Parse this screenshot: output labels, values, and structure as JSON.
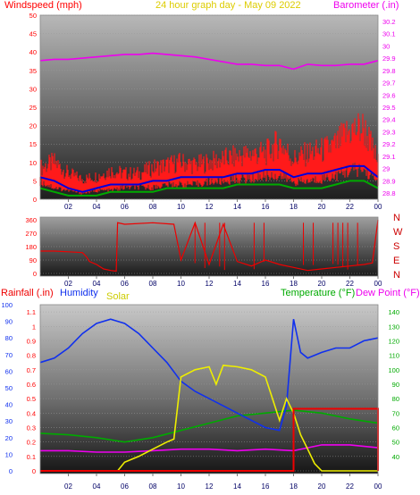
{
  "title": "24 hour graph day - May 09 2022",
  "colors": {
    "wind": "#ff1a1a",
    "wind_mid": "#0000dd",
    "wind_low": "#00aa00",
    "barometer": "#ee00ee",
    "direction": "#ee0000",
    "rainfall": "#ee0000",
    "humidity": "#1030ee",
    "solar": "#eeee00",
    "temperature": "#00aa00",
    "dewpoint": "#ee00ee",
    "title": "#ddcc00",
    "axis_left": "#ff0000",
    "axis_right_top": "#ee00ee",
    "axis_right_bottom": "#00aa00"
  },
  "x_ticks": [
    "02",
    "04",
    "06",
    "08",
    "10",
    "12",
    "14",
    "16",
    "18",
    "20",
    "22",
    "00"
  ],
  "chart_data": [
    {
      "type": "line",
      "panel": "wind_barometer",
      "labels": {
        "left": "Windspeed (mph)",
        "right": "Barometer (.in)"
      },
      "y_left": {
        "ticks": [
          "0",
          "5",
          "10",
          "15",
          "20",
          "25",
          "30",
          "35",
          "40",
          "45",
          "50"
        ],
        "range": [
          0,
          50
        ]
      },
      "y_right": {
        "ticks": [
          "28.8",
          "28.9",
          "29",
          "29.1",
          "29.2",
          "29.3",
          "29.4",
          "29.5",
          "29.6",
          "29.7",
          "29.8",
          "29.9",
          "30",
          "30.1",
          "30.2"
        ],
        "range": [
          28.75,
          30.25
        ]
      },
      "series": [
        {
          "name": "Windspeed (mph)",
          "x": [
            0,
            1,
            2,
            3,
            4,
            5,
            6,
            7,
            8,
            9,
            10,
            11,
            12,
            13,
            14,
            15,
            16,
            17,
            18,
            19,
            20,
            21,
            22,
            23,
            24
          ],
          "gust_max": [
            11,
            13,
            9,
            7,
            8,
            10,
            9,
            9,
            11,
            12,
            13,
            12,
            13,
            14,
            15,
            16,
            16,
            20,
            14,
            16,
            17,
            19,
            24,
            25,
            13
          ],
          "gust_min": [
            6,
            4,
            3,
            2,
            3,
            3,
            4,
            4,
            4,
            5,
            5,
            5,
            6,
            6,
            7,
            7,
            8,
            8,
            6,
            6,
            7,
            8,
            10,
            10,
            6
          ],
          "avg": [
            6,
            5,
            3,
            2,
            3,
            4,
            4,
            4,
            5,
            5,
            6,
            6,
            6,
            6,
            7,
            7,
            8,
            8,
            6,
            7,
            7,
            8,
            9,
            9,
            6
          ],
          "low": [
            3,
            2,
            1,
            1,
            1,
            2,
            2,
            2,
            2,
            3,
            3,
            3,
            3,
            3,
            4,
            4,
            4,
            4,
            3,
            3,
            3,
            4,
            5,
            5,
            3
          ]
        },
        {
          "name": "Barometer (.in)",
          "x": [
            0,
            1,
            2,
            3,
            4,
            5,
            6,
            7,
            8,
            9,
            10,
            11,
            12,
            13,
            14,
            15,
            16,
            17,
            18,
            19,
            20,
            21,
            22,
            23,
            24
          ],
          "values": [
            29.88,
            29.89,
            29.89,
            29.9,
            29.91,
            29.92,
            29.93,
            29.93,
            29.94,
            29.93,
            29.92,
            29.91,
            29.89,
            29.87,
            29.85,
            29.85,
            29.84,
            29.84,
            29.81,
            29.85,
            29.84,
            29.84,
            29.85,
            29.85,
            29.88
          ]
        }
      ]
    },
    {
      "type": "line",
      "panel": "wind_direction",
      "y_left": {
        "ticks": [
          "0",
          "90",
          "180",
          "270",
          "360"
        ],
        "range": [
          0,
          360
        ]
      },
      "direction_labels": [
        "N",
        "W",
        "S",
        "E",
        "N"
      ],
      "series": [
        {
          "name": "Wind direction",
          "x": [
            0,
            1,
            2,
            3,
            3.3,
            3.5,
            4,
            4.5,
            5,
            5.4,
            5.5,
            6,
            8,
            9.5,
            10,
            11,
            12,
            13,
            14,
            15,
            16,
            17,
            18,
            19,
            20,
            21,
            22,
            23,
            23.6,
            24
          ],
          "values": [
            150,
            150,
            145,
            140,
            110,
            80,
            60,
            30,
            20,
            15,
            340,
            330,
            340,
            330,
            90,
            340,
            60,
            330,
            80,
            50,
            90,
            60,
            40,
            20,
            30,
            40,
            50,
            60,
            70,
            360
          ]
        }
      ]
    },
    {
      "type": "line",
      "panel": "rain_humidity_solar_temp",
      "labels": {
        "rainfall": "Rainfall (.in)",
        "humidity": "Humidity",
        "solar": "Solar",
        "temperature": "Temperature (°F)",
        "dewpoint": "Dew Point (°F)"
      },
      "y_rain": {
        "ticks": [
          "0",
          "10",
          "20",
          "30",
          "40",
          "50",
          "60",
          "70",
          "80",
          "90",
          "100"
        ],
        "range": [
          0,
          100
        ]
      },
      "y_humidity": {
        "ticks": [
          "0",
          "0.1",
          "0.2",
          "0.3",
          "0.4",
          "0.5",
          "0.6",
          "0.7",
          "0.8",
          "0.9",
          "1",
          "1.1"
        ],
        "range": [
          0,
          1.15
        ]
      },
      "y_temp": {
        "ticks": [
          "40",
          "50",
          "60",
          "70",
          "80",
          "90",
          "100",
          "110",
          "120",
          "130",
          "140"
        ],
        "range": [
          30,
          145
        ]
      },
      "series": [
        {
          "name": "Humidity",
          "x": [
            0,
            1,
            2,
            3,
            4,
            5,
            6,
            7,
            8,
            9,
            10,
            11,
            12,
            13,
            14,
            15,
            16,
            17,
            17.5,
            18,
            18.5,
            19,
            20,
            21,
            22,
            23,
            24
          ],
          "values": [
            0.75,
            0.78,
            0.85,
            0.95,
            1.02,
            1.05,
            1.02,
            0.95,
            0.85,
            0.75,
            0.62,
            0.55,
            0.5,
            0.45,
            0.4,
            0.35,
            0.3,
            0.28,
            0.45,
            1.05,
            0.82,
            0.78,
            0.82,
            0.85,
            0.85,
            0.9,
            0.92
          ]
        },
        {
          "name": "Solar",
          "x": [
            0,
            5.5,
            6,
            7,
            8,
            9,
            9.5,
            10,
            11,
            12,
            12.5,
            13,
            14,
            15,
            16,
            17,
            17.5,
            18,
            18.5,
            19,
            19.5,
            20,
            24
          ],
          "values": [
            0,
            0,
            0.06,
            0.1,
            0.15,
            0.2,
            0.22,
            0.65,
            0.7,
            0.72,
            0.6,
            0.73,
            0.72,
            0.7,
            0.65,
            0.35,
            0.5,
            0.4,
            0.25,
            0.15,
            0.05,
            0,
            0
          ]
        },
        {
          "name": "Temperature (°F)",
          "x": [
            0,
            2,
            4,
            6,
            8,
            10,
            12,
            14,
            16,
            18,
            20,
            22,
            24
          ],
          "values": [
            56,
            55,
            53,
            50,
            53,
            58,
            63,
            68,
            70,
            72,
            70,
            66,
            63
          ]
        },
        {
          "name": "Dew Point (°F)",
          "x": [
            0,
            2,
            4,
            6,
            8,
            10,
            12,
            14,
            16,
            18,
            20,
            22,
            24
          ],
          "values": [
            44,
            44,
            43,
            43,
            44,
            45,
            45,
            44,
            45,
            44,
            48,
            48,
            46
          ]
        },
        {
          "name": "Rainfall (.in)",
          "x": [
            0,
            18,
            18,
            24,
            24
          ],
          "values": [
            0,
            0,
            0.43,
            0.43,
            0
          ]
        }
      ]
    }
  ]
}
